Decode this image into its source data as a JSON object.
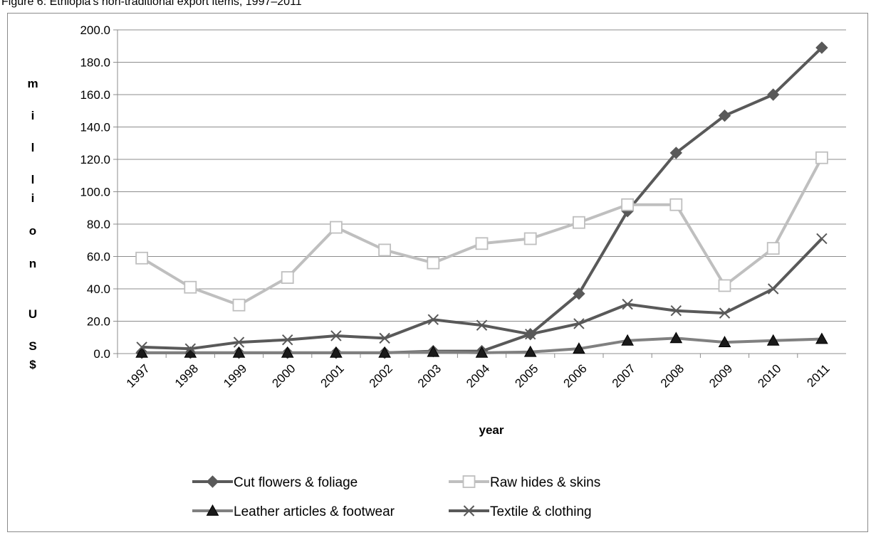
{
  "caption": "Figure 6: Ethiopia's non-traditional export items, 1997–2011",
  "chart_data": {
    "type": "line",
    "title": "",
    "xlabel": "year",
    "ylabel": "million US$",
    "ylabel_letters": [
      "m",
      "i",
      "l",
      "l",
      "i",
      "o",
      "n",
      "U",
      "S",
      "$"
    ],
    "x": [
      "1997",
      "1998",
      "1999",
      "2000",
      "2001",
      "2002",
      "2003",
      "2004",
      "2005",
      "2006",
      "2007",
      "2008",
      "2009",
      "2010",
      "2011"
    ],
    "ylim": [
      0,
      200
    ],
    "yticks": [
      "0.0",
      "20.0",
      "40.0",
      "60.0",
      "80.0",
      "100.0",
      "120.0",
      "140.0",
      "160.0",
      "180.0",
      "200.0"
    ],
    "grid": true,
    "legend_position": "bottom",
    "series": [
      {
        "name": "Cut flowers & foliage",
        "color": "#595959",
        "marker": "diamond",
        "values": [
          0.5,
          0.5,
          0.5,
          0.5,
          0.5,
          0.5,
          1.5,
          1.5,
          12.0,
          37.0,
          88.0,
          124.0,
          147.0,
          160.0,
          189.0
        ]
      },
      {
        "name": "Raw hides & skins",
        "color": "#bfbfbf",
        "marker": "square",
        "values": [
          59.0,
          41.0,
          30.0,
          47.0,
          78.0,
          64.0,
          56.0,
          68.0,
          71.0,
          81.0,
          92.0,
          92.0,
          42.0,
          65.0,
          121.0
        ]
      },
      {
        "name": "Leather articles & footwear",
        "color": "#808080",
        "marker": "triangle",
        "values": [
          0.5,
          0.5,
          0.5,
          0.5,
          0.5,
          0.5,
          1.0,
          0.5,
          1.0,
          3.0,
          8.0,
          9.5,
          7.0,
          8.0,
          9.0
        ]
      },
      {
        "name": "Textile & clothing",
        "color": "#595959",
        "marker": "x",
        "values": [
          4.0,
          3.0,
          7.0,
          8.5,
          11.0,
          9.5,
          21.0,
          17.5,
          12.0,
          18.5,
          30.5,
          26.5,
          25.0,
          40.0,
          71.0
        ]
      }
    ]
  }
}
